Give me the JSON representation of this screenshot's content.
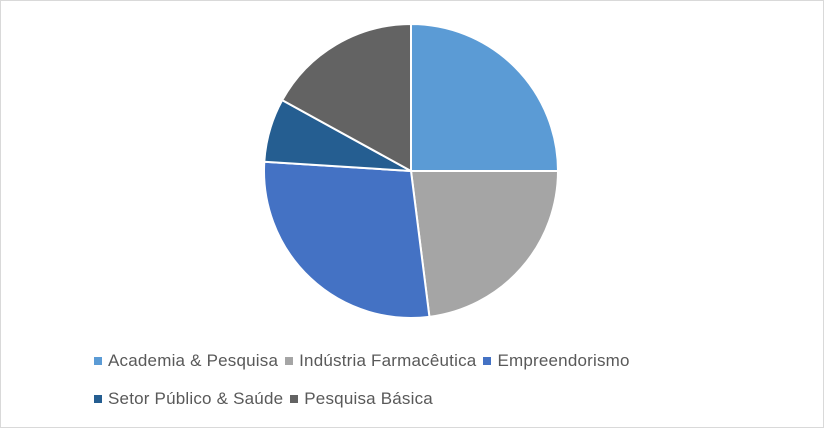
{
  "chart_data": {
    "type": "pie",
    "title": "",
    "categories": [
      "Academia & Pesquisa",
      "Indústria Farmacêutica",
      "Empreendorismo",
      "Setor Público & Saúde",
      "Pesquisa Básica"
    ],
    "values": [
      25,
      23,
      28,
      7,
      17
    ],
    "colors": [
      "#5B9BD5",
      "#A5A5A5",
      "#4472C4",
      "#255E91",
      "#636363"
    ],
    "start_angle_deg": 0,
    "direction": "clockwise",
    "legend": "bottom"
  }
}
